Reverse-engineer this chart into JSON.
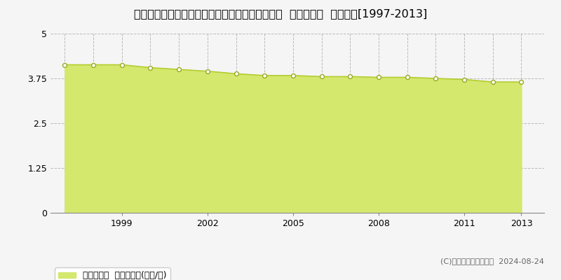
{
  "title": "福島県南会津郡下郷町大字中妻字大百刈６８番２  基準地価格  地価推移[1997-2013]",
  "years": [
    1997,
    1998,
    1999,
    2000,
    2001,
    2002,
    2003,
    2004,
    2005,
    2006,
    2007,
    2008,
    2009,
    2010,
    2011,
    2012,
    2013
  ],
  "values": [
    4.13,
    4.13,
    4.13,
    4.05,
    4.0,
    3.95,
    3.88,
    3.83,
    3.83,
    3.8,
    3.8,
    3.78,
    3.78,
    3.75,
    3.72,
    3.65,
    3.65
  ],
  "line_color": "#b5cc30",
  "fill_color": "#d4e86e",
  "fill_alpha": 1.0,
  "marker_facecolor": "#ffffff",
  "marker_edge_color": "#99aa20",
  "background_color": "#f5f5f5",
  "plot_bg_color": "#f5f5f5",
  "grid_color": "#bbbbbb",
  "yticks": [
    0,
    1.25,
    2.5,
    3.75,
    5
  ],
  "ylim": [
    0,
    5
  ],
  "xlim": [
    1996.5,
    2013.8
  ],
  "xtick_years": [
    1999,
    2002,
    2005,
    2008,
    2011,
    2013
  ],
  "legend_label": "基準地価格  平均坪単価(万円/坪)",
  "copyright_text": "(C)土地価格ドットコム  2024-08-24",
  "title_fontsize": 11.5,
  "axis_fontsize": 9,
  "legend_fontsize": 9
}
